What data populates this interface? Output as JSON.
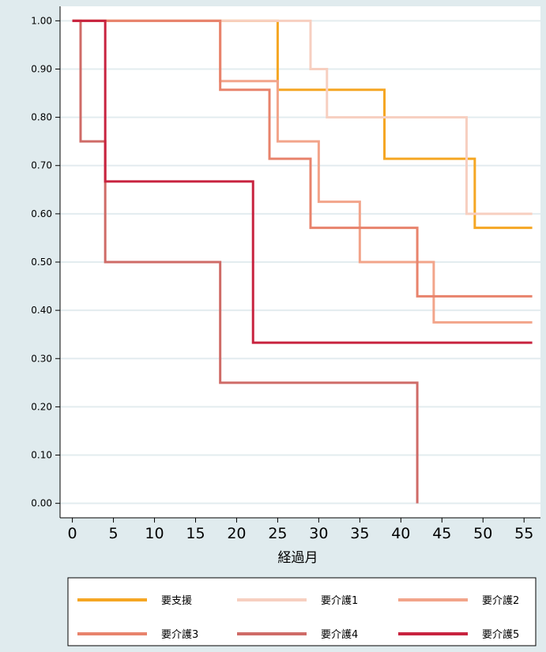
{
  "chart_data": {
    "type": "line",
    "step": true,
    "title": "",
    "xlabel": "経過月",
    "ylabel": "",
    "xlim": [
      -1.5,
      57
    ],
    "ylim": [
      -0.03,
      1.03
    ],
    "x_ticks": [
      0,
      5,
      10,
      15,
      20,
      25,
      30,
      35,
      40,
      45,
      50,
      55
    ],
    "y_ticks": [
      0,
      0.1,
      0.2,
      0.3,
      0.4,
      0.5,
      0.6,
      0.7,
      0.8,
      0.9,
      1.0
    ],
    "y_tick_labels": [
      "0.00",
      "0.10",
      "0.20",
      "0.30",
      "0.40",
      "0.50",
      "0.60",
      "0.70",
      "0.80",
      "0.90",
      "1.00"
    ],
    "grid": "horizontal",
    "legend_position": "bottom",
    "series": [
      {
        "name": "要支援",
        "color": "#f5a623",
        "x": [
          0,
          25,
          38,
          49,
          56
        ],
        "y": [
          1.0,
          0.857,
          0.714,
          0.571,
          0.571
        ]
      },
      {
        "name": "要介護1",
        "color": "#f7cfc0",
        "x": [
          0,
          29,
          31,
          48,
          56
        ],
        "y": [
          1.0,
          0.9,
          0.8,
          0.6,
          0.6
        ]
      },
      {
        "name": "要介護2",
        "color": "#f2a48a",
        "x": [
          0,
          18,
          25,
          30,
          35,
          44,
          56
        ],
        "y": [
          1.0,
          0.875,
          0.75,
          0.625,
          0.5,
          0.375,
          0.375
        ]
      },
      {
        "name": "要介護3",
        "color": "#e8836c",
        "x": [
          0,
          18,
          24,
          29,
          42,
          56
        ],
        "y": [
          1.0,
          0.857,
          0.714,
          0.571,
          0.429,
          0.429
        ]
      },
      {
        "name": "要介護4",
        "color": "#cf6b67",
        "x": [
          0,
          1,
          4,
          18,
          42
        ],
        "y": [
          1.0,
          0.75,
          0.5,
          0.25,
          0.0
        ]
      },
      {
        "name": "要介護5",
        "color": "#c8233f",
        "x": [
          0,
          4,
          22,
          56
        ],
        "y": [
          1.0,
          0.667,
          0.333,
          0.333
        ]
      }
    ]
  }
}
